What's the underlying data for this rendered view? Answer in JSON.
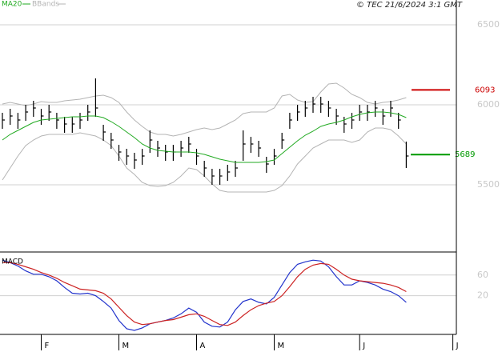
{
  "copyright": "© TEC 21/6/2024 3:1 GMT",
  "chart_data": [
    {
      "type": "ohlc",
      "categories": [
        null,
        null,
        null,
        null,
        null,
        "F",
        null,
        null,
        null,
        null,
        null,
        null,
        null,
        null,
        null,
        "M",
        null,
        null,
        null,
        null,
        null,
        null,
        null,
        null,
        null,
        "A",
        null,
        null,
        null,
        null,
        null,
        null,
        null,
        null,
        null,
        "M",
        null,
        null,
        null,
        null,
        null,
        null,
        null,
        null,
        null,
        null,
        "J",
        null,
        null,
        null,
        null,
        null,
        null,
        null,
        null,
        null,
        null,
        null,
        "J"
      ],
      "high": [
        5950,
        5975,
        5950,
        6000,
        6025,
        5975,
        6000,
        5950,
        5925,
        5925,
        5950,
        6000,
        6165,
        5875,
        5825,
        5750,
        5725,
        5700,
        5725,
        5840,
        5775,
        5750,
        5750,
        5775,
        5800,
        5725,
        5650,
        5600,
        5600,
        5625,
        5650,
        5840,
        5800,
        5775,
        5675,
        5725,
        5825,
        5950,
        6000,
        6025,
        6050,
        6050,
        6025,
        5975,
        5925,
        5950,
        6000,
        6000,
        6025,
        5975,
        6025,
        5950,
        5770,
        null,
        null,
        null,
        null,
        null,
        null
      ],
      "low": [
        5850,
        5875,
        5850,
        5900,
        5925,
        5875,
        5900,
        5850,
        5825,
        5825,
        5850,
        5900,
        5925,
        5775,
        5725,
        5650,
        5625,
        5600,
        5625,
        5700,
        5675,
        5650,
        5650,
        5675,
        5700,
        5625,
        5550,
        5500,
        5500,
        5525,
        5550,
        5650,
        5700,
        5675,
        5575,
        5625,
        5725,
        5850,
        5900,
        5925,
        5950,
        5950,
        5925,
        5875,
        5825,
        5850,
        5900,
        5900,
        5925,
        5875,
        5925,
        5850,
        5605,
        null,
        null,
        null,
        null,
        null,
        null
      ],
      "close": [
        5905,
        5930,
        5905,
        5955,
        5980,
        5930,
        5955,
        5905,
        5880,
        5880,
        5905,
        5955,
        5980,
        5830,
        5780,
        5705,
        5680,
        5655,
        5680,
        5780,
        5730,
        5705,
        5705,
        5730,
        5755,
        5680,
        5605,
        5555,
        5555,
        5580,
        5605,
        5755,
        5755,
        5730,
        5630,
        5680,
        5780,
        5905,
        5955,
        5980,
        6005,
        6005,
        5980,
        5930,
        5880,
        5905,
        5955,
        5955,
        5980,
        5930,
        5980,
        5905,
        5680,
        null,
        null,
        null,
        null,
        null,
        null
      ],
      "bar_color": "#000000",
      "series": [
        {
          "name": "MA20",
          "color": "#22aa22",
          "values": [
            5780,
            5815,
            5840,
            5865,
            5890,
            5905,
            5910,
            5915,
            5920,
            5925,
            5925,
            5930,
            5930,
            5920,
            5895,
            5865,
            5830,
            5795,
            5755,
            5730,
            5715,
            5710,
            5705,
            5705,
            5705,
            5700,
            5690,
            5675,
            5660,
            5650,
            5640,
            5640,
            5640,
            5640,
            5645,
            5655,
            5695,
            5735,
            5775,
            5810,
            5835,
            5865,
            5880,
            5890,
            5905,
            5925,
            5940,
            5950,
            5955,
            5955,
            5950,
            5940,
            5920,
            null,
            null,
            null,
            null,
            null,
            null
          ]
        },
        {
          "name": "BBands",
          "color": "#b4b4b4",
          "upper": [
            6005,
            6015,
            6005,
            5995,
            6005,
            6020,
            6015,
            6015,
            6025,
            6030,
            6035,
            6045,
            6055,
            6060,
            6045,
            6015,
            5955,
            5905,
            5865,
            5830,
            5815,
            5815,
            5805,
            5815,
            5830,
            5845,
            5855,
            5845,
            5855,
            5880,
            5905,
            5945,
            5955,
            5955,
            5955,
            5980,
            6055,
            6065,
            6030,
            6015,
            6020,
            6080,
            6130,
            6135,
            6105,
            6065,
            6045,
            6015,
            6005,
            6015,
            6020,
            6030,
            6045,
            null,
            null,
            null,
            null,
            null,
            null
          ],
          "lower": [
            5530,
            5605,
            5680,
            5745,
            5780,
            5805,
            5815,
            5815,
            5815,
            5815,
            5825,
            5815,
            5805,
            5780,
            5745,
            5680,
            5605,
            5565,
            5515,
            5495,
            5490,
            5495,
            5515,
            5555,
            5605,
            5595,
            5555,
            5505,
            5465,
            5455,
            5455,
            5455,
            5455,
            5455,
            5455,
            5465,
            5495,
            5555,
            5630,
            5680,
            5730,
            5755,
            5780,
            5780,
            5780,
            5765,
            5780,
            5830,
            5855,
            5855,
            5845,
            5805,
            5755,
            null,
            null,
            null,
            null,
            null,
            null
          ]
        }
      ],
      "markers": [
        {
          "value": 6093,
          "color": "#cc0000"
        },
        {
          "value": 5689,
          "color": "#009900"
        }
      ],
      "ylim": [
        5080,
        6655
      ],
      "yticks": [
        5500,
        6000,
        6500
      ],
      "grid": true
    },
    {
      "type": "line",
      "title": "MACD",
      "series": [
        {
          "color": "#2233cc",
          "values": [
            88.8,
            84,
            77.6,
            68,
            61.6,
            61.6,
            56.8,
            48.8,
            36,
            24.8,
            23.2,
            24.8,
            20,
            8.8,
            -4,
            -28,
            -44,
            -47.2,
            -42.4,
            -34.4,
            -31.2,
            -28,
            -23.2,
            -15.2,
            -4,
            -12,
            -31.2,
            -39.2,
            -40.8,
            -31.2,
            -7.2,
            8.8,
            13.6,
            7.2,
            4,
            16.8,
            40.8,
            64.8,
            80.8,
            85.6,
            88.8,
            87.2,
            76,
            56.8,
            40.8,
            40.8,
            48.8,
            45.6,
            40.8,
            32.8,
            28,
            20,
            7.2,
            null,
            null,
            null,
            null,
            null,
            null
          ]
        },
        {
          "color": "#cc2222",
          "values": [
            84,
            84,
            80.8,
            76,
            71.2,
            64.8,
            60,
            53.6,
            45.6,
            39.2,
            32.8,
            31.2,
            29.6,
            24.8,
            13.6,
            -2.4,
            -18.4,
            -31.2,
            -36,
            -34.4,
            -31.2,
            -28,
            -26.4,
            -21.6,
            -16.8,
            -15.2,
            -20,
            -28,
            -36,
            -37.6,
            -31.2,
            -18.4,
            -7.2,
            0.8,
            5.6,
            8.8,
            20,
            37.6,
            56.8,
            71.2,
            79.2,
            82.4,
            80.8,
            71.2,
            60,
            52,
            48.8,
            47.2,
            45.6,
            44,
            40.8,
            36,
            28,
            null,
            null,
            null,
            null,
            null,
            null
          ]
        }
      ],
      "ylim": [
        -55,
        100
      ],
      "yticks": [
        20,
        60
      ],
      "grid": true
    }
  ]
}
